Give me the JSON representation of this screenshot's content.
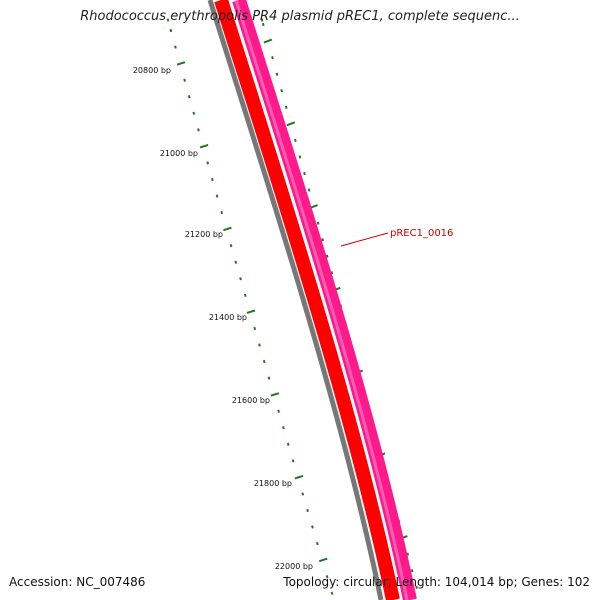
{
  "title": "Rhodococcus erythropolis PR4 plasmid pREC1, complete sequenc...",
  "footer": {
    "accession": "Accession: NC_007486",
    "summary": "Topology: circular; Length: 104,014 bp; Genes: 102"
  },
  "ruler": {
    "color": "#1a7a1a",
    "labels": [
      "20800 bp",
      "21000 bp",
      "21200 bp",
      "21400 bp",
      "21600 bp",
      "21800 bp",
      "22000 bp"
    ]
  },
  "tracks": {
    "backbone_color": "#777777",
    "reverse_gene_color": "#ff0000",
    "forward_gene_color": "#ff1a8c"
  },
  "gene_labels": [
    {
      "text": "pREC1_0016",
      "color": "#cc0000"
    }
  ],
  "ticks": {
    "color": "#1a7a1a"
  }
}
